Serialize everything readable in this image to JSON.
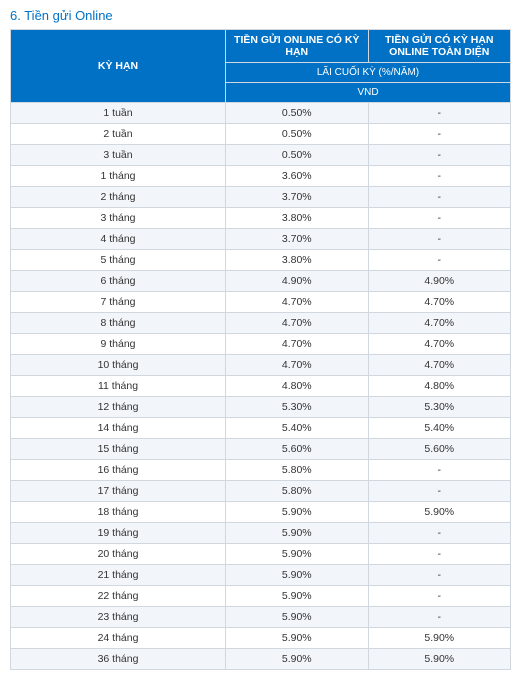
{
  "section_title": "6. Tiền gửi Online",
  "table": {
    "header": {
      "term": "KỲ HẠN",
      "col_a": "TIỀN GỬI ONLINE CÓ KỲ HẠN",
      "col_b": "TIỀN GỬI CÓ KỲ HẠN ONLINE TOÀN DIỆN",
      "rate_label": "LÃI CUỐI KỲ (%/NĂM)",
      "currency": "VND"
    },
    "rows": [
      {
        "term": "1 tuần",
        "a": "0.50%",
        "b": "-"
      },
      {
        "term": "2 tuần",
        "a": "0.50%",
        "b": "-"
      },
      {
        "term": "3 tuần",
        "a": "0.50%",
        "b": "-"
      },
      {
        "term": "1 tháng",
        "a": "3.60%",
        "b": "-"
      },
      {
        "term": "2 tháng",
        "a": "3.70%",
        "b": "-"
      },
      {
        "term": "3 tháng",
        "a": "3.80%",
        "b": "-"
      },
      {
        "term": "4 tháng",
        "a": "3.70%",
        "b": "-"
      },
      {
        "term": "5 tháng",
        "a": "3.80%",
        "b": "-"
      },
      {
        "term": "6 tháng",
        "a": "4.90%",
        "b": "4.90%"
      },
      {
        "term": "7 tháng",
        "a": "4.70%",
        "b": "4.70%"
      },
      {
        "term": "8 tháng",
        "a": "4.70%",
        "b": "4.70%"
      },
      {
        "term": "9 tháng",
        "a": "4.70%",
        "b": "4.70%"
      },
      {
        "term": "10 tháng",
        "a": "4.70%",
        "b": "4.70%"
      },
      {
        "term": "11 tháng",
        "a": "4.80%",
        "b": "4.80%"
      },
      {
        "term": "12 tháng",
        "a": "5.30%",
        "b": "5.30%"
      },
      {
        "term": "14 tháng",
        "a": "5.40%",
        "b": "5.40%"
      },
      {
        "term": "15 tháng",
        "a": "5.60%",
        "b": "5.60%"
      },
      {
        "term": "16 tháng",
        "a": "5.80%",
        "b": "-"
      },
      {
        "term": "17 tháng",
        "a": "5.80%",
        "b": "-"
      },
      {
        "term": "18 tháng",
        "a": "5.90%",
        "b": "5.90%"
      },
      {
        "term": "19 tháng",
        "a": "5.90%",
        "b": "-"
      },
      {
        "term": "20 tháng",
        "a": "5.90%",
        "b": "-"
      },
      {
        "term": "21 tháng",
        "a": "5.90%",
        "b": "-"
      },
      {
        "term": "22 tháng",
        "a": "5.90%",
        "b": "-"
      },
      {
        "term": "23 tháng",
        "a": "5.90%",
        "b": "-"
      },
      {
        "term": "24 tháng",
        "a": "5.90%",
        "b": "5.90%"
      },
      {
        "term": "36 tháng",
        "a": "5.90%",
        "b": "5.90%"
      }
    ]
  },
  "styling": {
    "type": "table",
    "header_bg": "#0071c5",
    "header_fg": "#ffffff",
    "border_color": "#d0d7de",
    "row_alt_bg": "#f2f6fa",
    "row_bg": "#ffffff",
    "title_color": "#0071c5",
    "font_family": "Arial",
    "font_size_body": 10.5,
    "font_size_title": 13,
    "column_widths_pct": [
      43,
      28.5,
      28.5
    ]
  }
}
